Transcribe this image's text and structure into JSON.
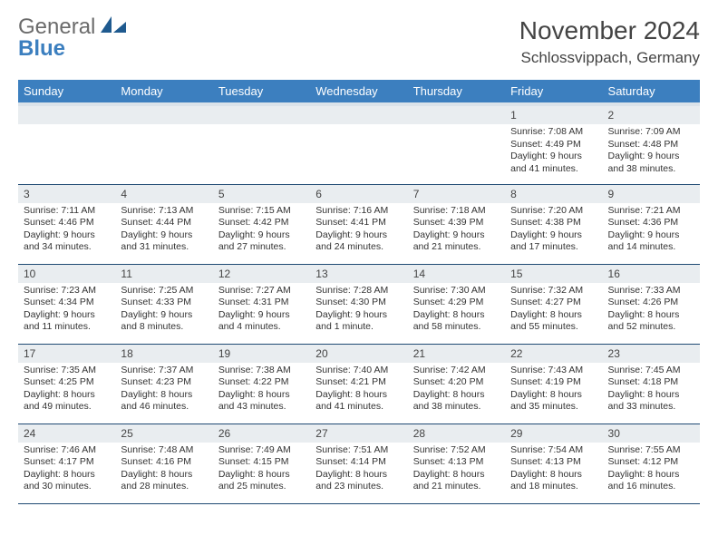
{
  "logo": {
    "word1": "General",
    "word2": "Blue",
    "mark_color": "#1f5a8f",
    "text_gray": "#6b6b6b"
  },
  "header": {
    "month_title": "November 2024",
    "location": "Schlossvippach, Germany"
  },
  "calendar": {
    "header_bg": "#3c7fbf",
    "header_underband": "#dbe3ea",
    "cell_border": "#1f4a73",
    "daynum_bg": "#e9edf0",
    "day_headers": [
      "Sunday",
      "Monday",
      "Tuesday",
      "Wednesday",
      "Thursday",
      "Friday",
      "Saturday"
    ],
    "weeks": [
      [
        null,
        null,
        null,
        null,
        null,
        {
          "n": "1",
          "sunrise": "Sunrise: 7:08 AM",
          "sunset": "Sunset: 4:49 PM",
          "day1": "Daylight: 9 hours",
          "day2": "and 41 minutes."
        },
        {
          "n": "2",
          "sunrise": "Sunrise: 7:09 AM",
          "sunset": "Sunset: 4:48 PM",
          "day1": "Daylight: 9 hours",
          "day2": "and 38 minutes."
        }
      ],
      [
        {
          "n": "3",
          "sunrise": "Sunrise: 7:11 AM",
          "sunset": "Sunset: 4:46 PM",
          "day1": "Daylight: 9 hours",
          "day2": "and 34 minutes."
        },
        {
          "n": "4",
          "sunrise": "Sunrise: 7:13 AM",
          "sunset": "Sunset: 4:44 PM",
          "day1": "Daylight: 9 hours",
          "day2": "and 31 minutes."
        },
        {
          "n": "5",
          "sunrise": "Sunrise: 7:15 AM",
          "sunset": "Sunset: 4:42 PM",
          "day1": "Daylight: 9 hours",
          "day2": "and 27 minutes."
        },
        {
          "n": "6",
          "sunrise": "Sunrise: 7:16 AM",
          "sunset": "Sunset: 4:41 PM",
          "day1": "Daylight: 9 hours",
          "day2": "and 24 minutes."
        },
        {
          "n": "7",
          "sunrise": "Sunrise: 7:18 AM",
          "sunset": "Sunset: 4:39 PM",
          "day1": "Daylight: 9 hours",
          "day2": "and 21 minutes."
        },
        {
          "n": "8",
          "sunrise": "Sunrise: 7:20 AM",
          "sunset": "Sunset: 4:38 PM",
          "day1": "Daylight: 9 hours",
          "day2": "and 17 minutes."
        },
        {
          "n": "9",
          "sunrise": "Sunrise: 7:21 AM",
          "sunset": "Sunset: 4:36 PM",
          "day1": "Daylight: 9 hours",
          "day2": "and 14 minutes."
        }
      ],
      [
        {
          "n": "10",
          "sunrise": "Sunrise: 7:23 AM",
          "sunset": "Sunset: 4:34 PM",
          "day1": "Daylight: 9 hours",
          "day2": "and 11 minutes."
        },
        {
          "n": "11",
          "sunrise": "Sunrise: 7:25 AM",
          "sunset": "Sunset: 4:33 PM",
          "day1": "Daylight: 9 hours",
          "day2": "and 8 minutes."
        },
        {
          "n": "12",
          "sunrise": "Sunrise: 7:27 AM",
          "sunset": "Sunset: 4:31 PM",
          "day1": "Daylight: 9 hours",
          "day2": "and 4 minutes."
        },
        {
          "n": "13",
          "sunrise": "Sunrise: 7:28 AM",
          "sunset": "Sunset: 4:30 PM",
          "day1": "Daylight: 9 hours",
          "day2": "and 1 minute."
        },
        {
          "n": "14",
          "sunrise": "Sunrise: 7:30 AM",
          "sunset": "Sunset: 4:29 PM",
          "day1": "Daylight: 8 hours",
          "day2": "and 58 minutes."
        },
        {
          "n": "15",
          "sunrise": "Sunrise: 7:32 AM",
          "sunset": "Sunset: 4:27 PM",
          "day1": "Daylight: 8 hours",
          "day2": "and 55 minutes."
        },
        {
          "n": "16",
          "sunrise": "Sunrise: 7:33 AM",
          "sunset": "Sunset: 4:26 PM",
          "day1": "Daylight: 8 hours",
          "day2": "and 52 minutes."
        }
      ],
      [
        {
          "n": "17",
          "sunrise": "Sunrise: 7:35 AM",
          "sunset": "Sunset: 4:25 PM",
          "day1": "Daylight: 8 hours",
          "day2": "and 49 minutes."
        },
        {
          "n": "18",
          "sunrise": "Sunrise: 7:37 AM",
          "sunset": "Sunset: 4:23 PM",
          "day1": "Daylight: 8 hours",
          "day2": "and 46 minutes."
        },
        {
          "n": "19",
          "sunrise": "Sunrise: 7:38 AM",
          "sunset": "Sunset: 4:22 PM",
          "day1": "Daylight: 8 hours",
          "day2": "and 43 minutes."
        },
        {
          "n": "20",
          "sunrise": "Sunrise: 7:40 AM",
          "sunset": "Sunset: 4:21 PM",
          "day1": "Daylight: 8 hours",
          "day2": "and 41 minutes."
        },
        {
          "n": "21",
          "sunrise": "Sunrise: 7:42 AM",
          "sunset": "Sunset: 4:20 PM",
          "day1": "Daylight: 8 hours",
          "day2": "and 38 minutes."
        },
        {
          "n": "22",
          "sunrise": "Sunrise: 7:43 AM",
          "sunset": "Sunset: 4:19 PM",
          "day1": "Daylight: 8 hours",
          "day2": "and 35 minutes."
        },
        {
          "n": "23",
          "sunrise": "Sunrise: 7:45 AM",
          "sunset": "Sunset: 4:18 PM",
          "day1": "Daylight: 8 hours",
          "day2": "and 33 minutes."
        }
      ],
      [
        {
          "n": "24",
          "sunrise": "Sunrise: 7:46 AM",
          "sunset": "Sunset: 4:17 PM",
          "day1": "Daylight: 8 hours",
          "day2": "and 30 minutes."
        },
        {
          "n": "25",
          "sunrise": "Sunrise: 7:48 AM",
          "sunset": "Sunset: 4:16 PM",
          "day1": "Daylight: 8 hours",
          "day2": "and 28 minutes."
        },
        {
          "n": "26",
          "sunrise": "Sunrise: 7:49 AM",
          "sunset": "Sunset: 4:15 PM",
          "day1": "Daylight: 8 hours",
          "day2": "and 25 minutes."
        },
        {
          "n": "27",
          "sunrise": "Sunrise: 7:51 AM",
          "sunset": "Sunset: 4:14 PM",
          "day1": "Daylight: 8 hours",
          "day2": "and 23 minutes."
        },
        {
          "n": "28",
          "sunrise": "Sunrise: 7:52 AM",
          "sunset": "Sunset: 4:13 PM",
          "day1": "Daylight: 8 hours",
          "day2": "and 21 minutes."
        },
        {
          "n": "29",
          "sunrise": "Sunrise: 7:54 AM",
          "sunset": "Sunset: 4:13 PM",
          "day1": "Daylight: 8 hours",
          "day2": "and 18 minutes."
        },
        {
          "n": "30",
          "sunrise": "Sunrise: 7:55 AM",
          "sunset": "Sunset: 4:12 PM",
          "day1": "Daylight: 8 hours",
          "day2": "and 16 minutes."
        }
      ]
    ]
  }
}
